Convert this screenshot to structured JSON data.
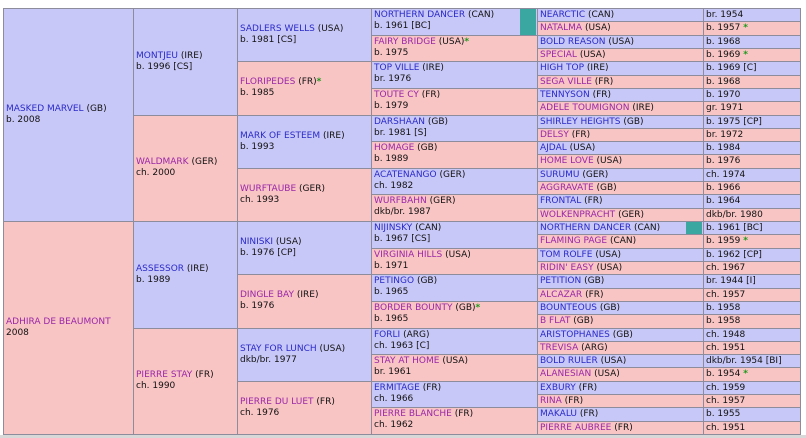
{
  "generations": [
    [
      {
        "name": "MASKED MARVEL",
        "country": "(GB)",
        "info": "b. 2008"
      },
      {
        "name": "ADHIRA DE BEAUMONT",
        "info": "2008"
      }
    ],
    [
      {
        "name": "MONTJEU",
        "country": "(IRE)",
        "info": "b. 1996 [CS]"
      },
      {
        "name": "WALDMARK",
        "country": "(GER)",
        "info": "ch. 2000"
      },
      {
        "name": "ASSESSOR",
        "country": "(IRE)",
        "info": "b. 1989"
      },
      {
        "name": "PIERRE STAY",
        "country": "(FR)",
        "info": "ch. 1990"
      }
    ],
    [
      {
        "name": "SADLERS WELLS",
        "country": "(USA)",
        "info": "b. 1981 [CS]"
      },
      {
        "name": "FLORIPEDES",
        "country": "(FR)",
        "star": "*",
        "info": "b. 1985"
      },
      {
        "name": "MARK OF ESTEEM",
        "country": "(IRE)",
        "info": "b. 1993"
      },
      {
        "name": "WURFTAUBE",
        "country": "(GER)",
        "info": "ch. 1993"
      },
      {
        "name": "NINISKI",
        "country": "(USA)",
        "info": "b. 1976 [CP]"
      },
      {
        "name": "DINGLE BAY",
        "country": "(IRE)",
        "info": "b. 1976"
      },
      {
        "name": "STAY FOR LUNCH",
        "country": "(USA)",
        "info": "dkb/br. 1977"
      },
      {
        "name": "PIERRE DU LUET",
        "country": "(FR)",
        "info": "ch. 1976"
      }
    ],
    [
      {
        "name": "NORTHERN DANCER",
        "country": "(CAN)",
        "info": "b. 1961 [BC]"
      },
      {
        "name": "FAIRY BRIDGE",
        "country": "(USA)",
        "star": "*",
        "info": "b. 1975"
      },
      {
        "name": "TOP VILLE",
        "country": "(IRE)",
        "info": "br. 1976"
      },
      {
        "name": "TOUTE CY",
        "country": "(FR)",
        "info": "b. 1979"
      },
      {
        "name": "DARSHAAN",
        "country": "(GB)",
        "info": "br. 1981 [S]"
      },
      {
        "name": "HOMAGE",
        "country": "(GB)",
        "info": "b. 1989"
      },
      {
        "name": "ACATENANGO",
        "country": "(GER)",
        "info": "ch. 1982"
      },
      {
        "name": "WURFBAHN",
        "country": "(GER)",
        "info": "dkb/br. 1987"
      },
      {
        "name": "NIJINSKY",
        "country": "(CAN)",
        "info": "b. 1967 [CS]"
      },
      {
        "name": "VIRGINIA HILLS",
        "country": "(USA)",
        "info": "b. 1971"
      },
      {
        "name": "PETINGO",
        "country": "(GB)",
        "info": "b. 1965"
      },
      {
        "name": "BORDER BOUNTY",
        "country": "(GB)",
        "star": "*",
        "info": "b. 1965"
      },
      {
        "name": "FORLI",
        "country": "(ARG)",
        "info": "ch. 1963 [C]"
      },
      {
        "name": "STAY AT HOME",
        "country": "(USA)",
        "info": "br. 1961"
      },
      {
        "name": "ERMITAGE",
        "country": "(FR)",
        "info": "ch. 1966"
      },
      {
        "name": "PIERRE BLANCHE",
        "country": "(FR)",
        "info": "ch. 1962"
      }
    ],
    [
      {
        "name": "NEARCTIC",
        "country": "(CAN)",
        "info": "br. 1954"
      },
      {
        "name": "NATALMA",
        "country": "(USA)",
        "info": "b. 1957",
        "star": "*"
      },
      {
        "name": "BOLD REASON",
        "country": "(USA)",
        "info": "b. 1968"
      },
      {
        "name": "SPECIAL",
        "country": "(USA)",
        "info": "b. 1969",
        "star": "*"
      },
      {
        "name": "HIGH TOP",
        "country": "(IRE)",
        "info": "b. 1969 [C]"
      },
      {
        "name": "SEGA VILLE",
        "country": "(FR)",
        "info": "b. 1968"
      },
      {
        "name": "TENNYSON",
        "country": "(FR)",
        "info": "b. 1970"
      },
      {
        "name": "ADELE TOUMIGNON",
        "country": "(IRE)",
        "info": "gr. 1971"
      },
      {
        "name": "SHIRLEY HEIGHTS",
        "country": "(GB)",
        "info": "b. 1975 [CP]"
      },
      {
        "name": "DELSY",
        "country": "(FR)",
        "info": "br. 1972"
      },
      {
        "name": "AJDAL",
        "country": "(USA)",
        "info": "b. 1984"
      },
      {
        "name": "HOME LOVE",
        "country": "(USA)",
        "info": "b. 1976"
      },
      {
        "name": "SURUMU",
        "country": "(GER)",
        "info": "ch. 1974"
      },
      {
        "name": "AGGRAVATE",
        "country": "(GB)",
        "info": "b. 1966"
      },
      {
        "name": "FRONTAL",
        "country": "(FR)",
        "info": "b. 1964"
      },
      {
        "name": "WOLKENPRACHT",
        "country": "(GER)",
        "info": "dkb/br. 1980"
      },
      {
        "name": "NORTHERN DANCER",
        "country": "(CAN)",
        "info": "b. 1961 [BC]"
      },
      {
        "name": "FLAMING PAGE",
        "country": "(CAN)",
        "info": "b. 1959",
        "star": "*"
      },
      {
        "name": "TOM ROLFE",
        "country": "(USA)",
        "info": "b. 1962 [CP]"
      },
      {
        "name": "RIDIN' EASY",
        "country": "(USA)",
        "info": "ch. 1967"
      },
      {
        "name": "PETITION",
        "country": "(GB)",
        "info": "br. 1944 [I]"
      },
      {
        "name": "ALCAZAR",
        "country": "(FR)",
        "info": "ch. 1957"
      },
      {
        "name": "BOUNTEOUS",
        "country": "(GB)",
        "info": "b. 1958"
      },
      {
        "name": "B FLAT",
        "country": "(GB)",
        "info": "b. 1958"
      },
      {
        "name": "ARISTOPHANES",
        "country": "(GB)",
        "info": "ch. 1948"
      },
      {
        "name": "TREVISA",
        "country": "(ARG)",
        "info": "ch. 1951"
      },
      {
        "name": "BOLD RULER",
        "country": "(USA)",
        "info": "dkb/br. 1954 [BI]"
      },
      {
        "name": "ALANESIAN",
        "country": "(USA)",
        "info": "b. 1954",
        "star": "*"
      },
      {
        "name": "EXBURY",
        "country": "(FR)",
        "info": "ch. 1959"
      },
      {
        "name": "RINA",
        "country": "(FR)",
        "info": "ch. 1957"
      },
      {
        "name": "MAKALU",
        "country": "(FR)",
        "info": "b. 1955"
      },
      {
        "name": "PIERRE AUBREE",
        "country": "(FR)",
        "info": "ch. 1951"
      }
    ]
  ]
}
